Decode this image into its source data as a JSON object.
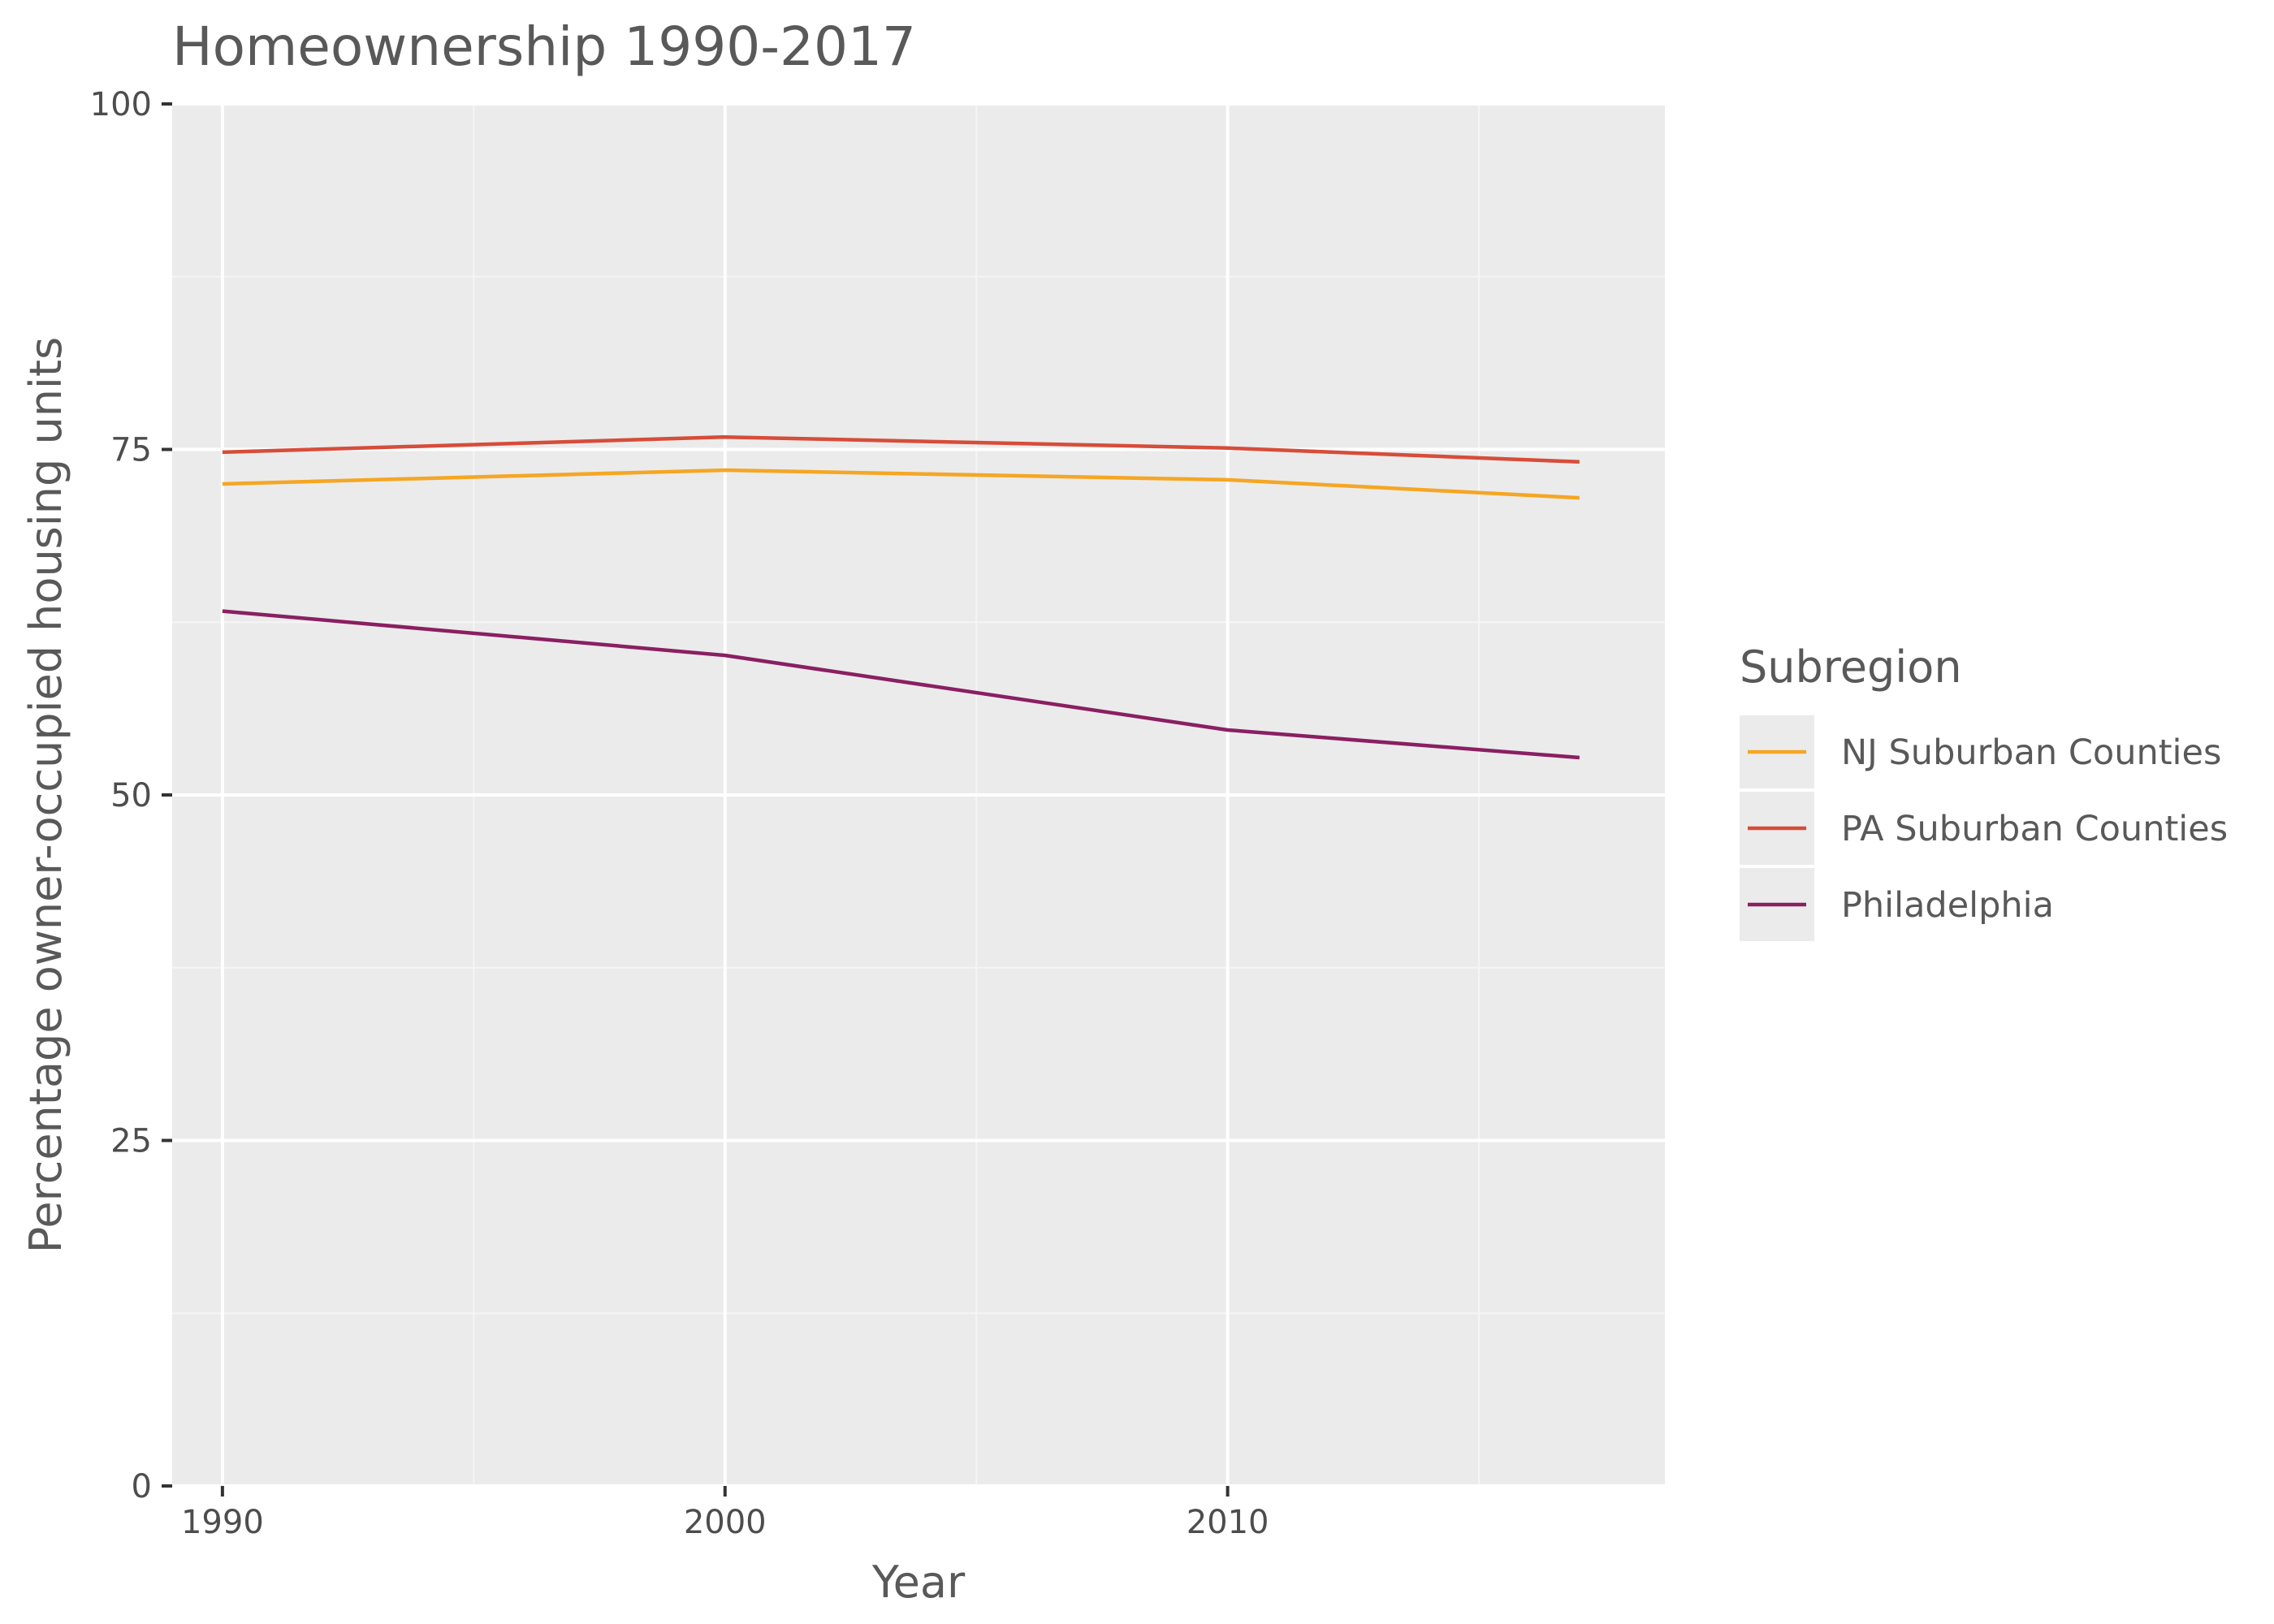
{
  "chart_data": {
    "type": "line",
    "title": "Homeownership 1990-2017",
    "xlabel": "Year",
    "ylabel": "Percentage owner-occupied housing units",
    "xlim": [
      1989,
      2018.7
    ],
    "ylim": [
      0,
      100
    ],
    "x_ticks": [
      1990,
      2000,
      2010
    ],
    "x_tick_labels": [
      "1990",
      "2000",
      "2010"
    ],
    "y_ticks": [
      0,
      25,
      50,
      75,
      100
    ],
    "y_tick_labels": [
      "0",
      "25",
      "50",
      "75",
      "100"
    ],
    "x_minor_ticks": [
      1995,
      2005,
      2015
    ],
    "y_minor_ticks": [
      12.5,
      37.5,
      62.5,
      87.5
    ],
    "grid": true,
    "legend": {
      "title": "Subregion",
      "position": "right"
    },
    "series": [
      {
        "name": "NJ Suburban Counties",
        "color": "#f5a623",
        "x": [
          1990,
          2000,
          2010,
          2017
        ],
        "y": [
          72.5,
          73.5,
          72.8,
          71.5
        ]
      },
      {
        "name": "PA Suburban Counties",
        "color": "#d64d3a",
        "x": [
          1990,
          2000,
          2010,
          2017
        ],
        "y": [
          74.8,
          75.9,
          75.1,
          74.1
        ]
      },
      {
        "name": "Philadelphia",
        "color": "#8a1f62",
        "x": [
          1990,
          2000,
          2010,
          2017
        ],
        "y": [
          63.3,
          60.1,
          54.7,
          52.7
        ]
      }
    ]
  },
  "colors": {
    "panel_background": "#ebebeb",
    "grid_major": "#ffffff",
    "grid_minor": "#f5f5f5",
    "legend_key_background": "#ebebeb"
  }
}
